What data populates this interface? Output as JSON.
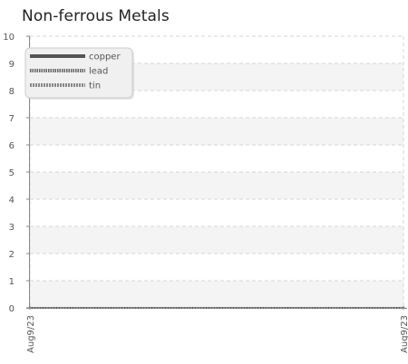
{
  "chart_data": {
    "type": "line",
    "title": "Non-ferrous Metals",
    "xlabel": "",
    "ylabel": "",
    "x": [
      "Aug9/23",
      "Aug9/23"
    ],
    "x_ticks": [
      "Aug9/23",
      "Aug9/23"
    ],
    "ylim": [
      0,
      10
    ],
    "y_ticks": [
      "0",
      "1",
      "2",
      "3",
      "4",
      "5",
      "6",
      "7",
      "8",
      "9",
      "10"
    ],
    "grid": true,
    "legend_position": "top-left",
    "series": [
      {
        "name": "copper",
        "values": [
          0,
          0
        ],
        "color": "#555555",
        "style": "solid"
      },
      {
        "name": "lead",
        "values": [
          0,
          0
        ],
        "color": "#666666",
        "style": "dotted"
      },
      {
        "name": "tin",
        "values": [
          0,
          0
        ],
        "color": "#888888",
        "style": "dashed"
      }
    ]
  }
}
